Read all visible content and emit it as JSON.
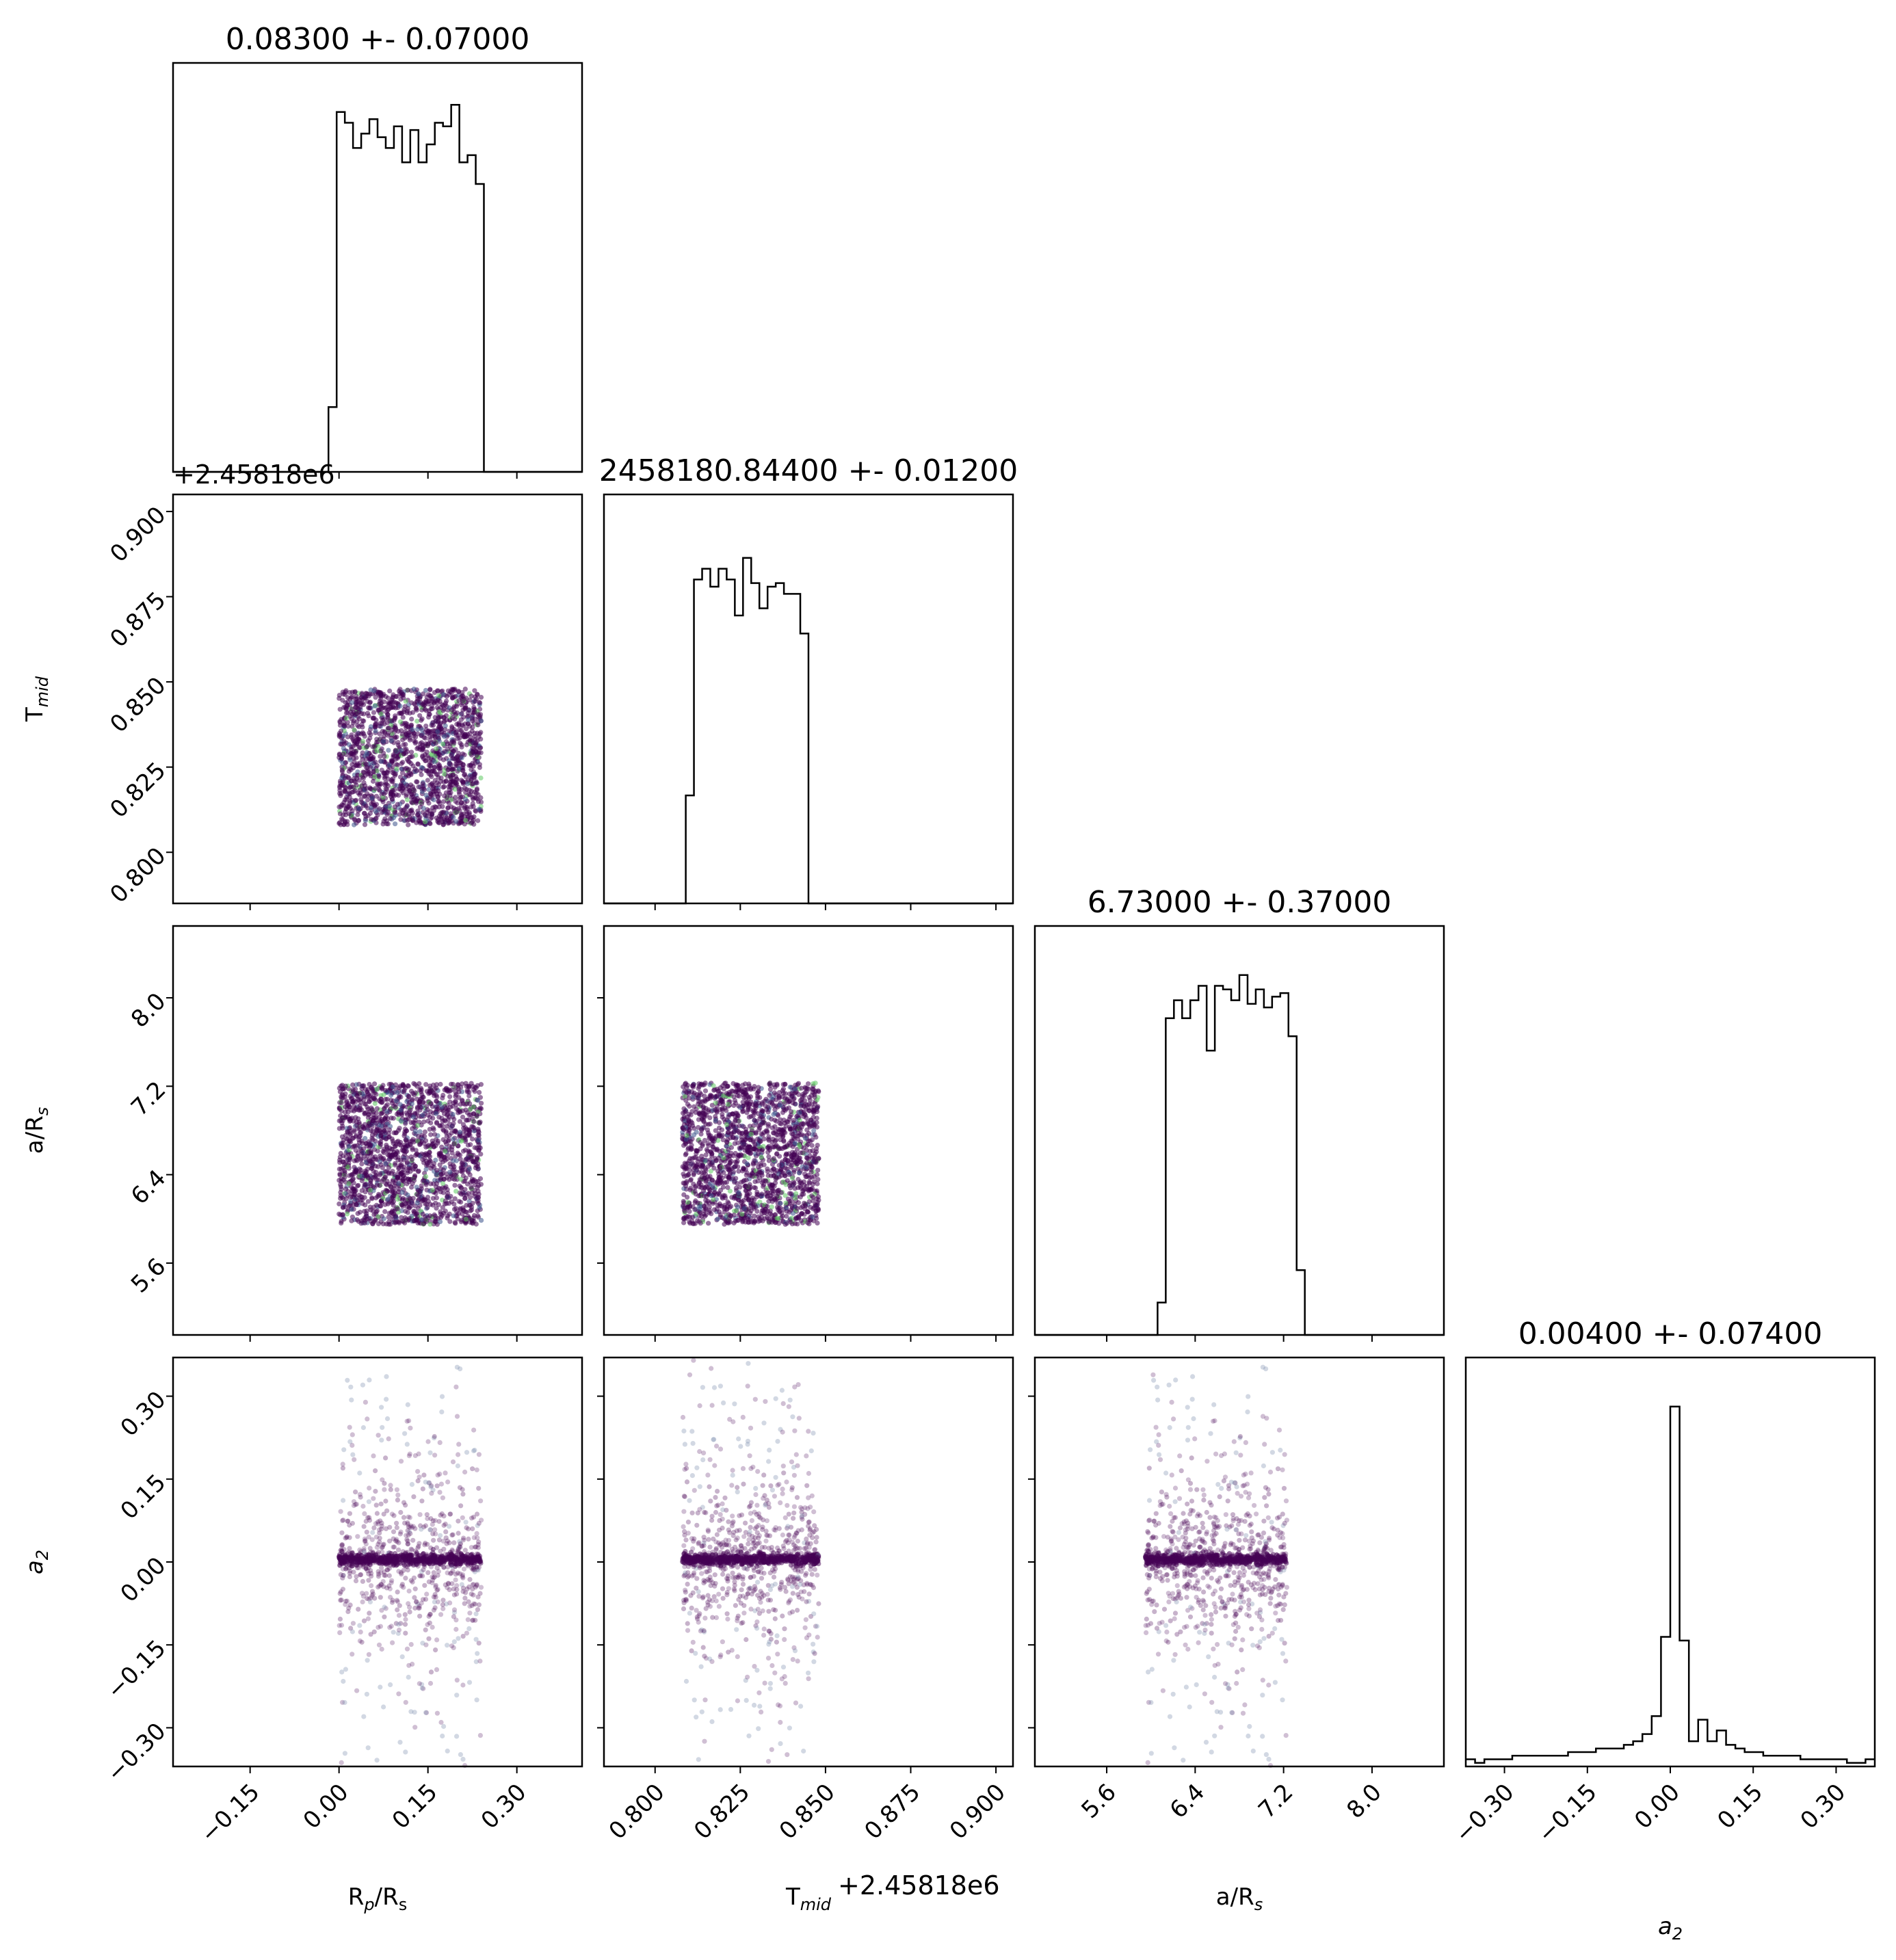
{
  "chart_data": {
    "type": "corner",
    "parameters": [
      {
        "key": "rp",
        "label": "R",
        "label_sub": "p",
        "label_mid": "/R",
        "label_sub2": "s",
        "range": [
          -0.28,
          0.41
        ],
        "ticks": [
          "−0.15",
          "0.00",
          "0.15",
          "0.30"
        ],
        "tick_values": [
          -0.15,
          0.0,
          0.15,
          0.3
        ],
        "samples_range": [
          0.0,
          0.24
        ],
        "title": "0.08300 +- 0.07000"
      },
      {
        "key": "tmid",
        "label": "T",
        "label_sub": "mid",
        "label_mid": "",
        "label_sub2": "",
        "range": [
          0.785,
          0.905
        ],
        "ticks": [
          "0.800",
          "0.825",
          "0.850",
          "0.875",
          "0.900"
        ],
        "tick_values": [
          0.8,
          0.825,
          0.85,
          0.875,
          0.9
        ],
        "samples_range": [
          0.808,
          0.848
        ],
        "title": "2458180.84400 +- 0.01200",
        "offset": "+2.45818e6"
      },
      {
        "key": "ars",
        "label": "a/R",
        "label_sub": "s",
        "label_mid": "",
        "label_sub2": "",
        "range": [
          4.95,
          8.65
        ],
        "ticks": [
          "5.6",
          "6.4",
          "7.2",
          "8.0"
        ],
        "tick_values": [
          5.6,
          6.4,
          7.2,
          8.0
        ],
        "samples_range": [
          5.95,
          7.23
        ],
        "title": "6.73000 +- 0.37000"
      },
      {
        "key": "a2",
        "label": "a",
        "label_sub": "2",
        "label_mid": "",
        "label_sub2": "",
        "italic": true,
        "range": [
          -0.37,
          0.37
        ],
        "ticks": [
          "−0.30",
          "−0.15",
          "0.00",
          "0.15",
          "0.30"
        ],
        "tick_values": [
          -0.3,
          -0.15,
          0.0,
          0.15,
          0.3
        ],
        "title": "0.00400 +- 0.07400"
      }
    ],
    "histograms": {
      "rp": {
        "bins": [
          -0.28,
          -0.2662,
          -0.2524,
          -0.2386,
          -0.2248,
          -0.211,
          -0.1972,
          -0.1834,
          -0.1696,
          -0.1558,
          -0.142,
          -0.1282,
          -0.1144,
          -0.1006,
          -0.0868,
          -0.073,
          -0.0592,
          -0.0454,
          -0.0316,
          -0.0178,
          -0.004,
          0.0098,
          0.0236,
          0.0374,
          0.0512,
          0.065,
          0.0788,
          0.0926,
          0.1064,
          0.1202,
          0.134,
          0.1478,
          0.1616,
          0.1754,
          0.1892,
          0.203,
          0.2168,
          0.2306,
          0.2444,
          0.2582,
          0.272,
          0.2858,
          0.2996,
          0.3134,
          0.3272,
          0.341,
          0.3548,
          0.3686,
          0.3824,
          0.3962,
          0.41
        ],
        "counts": [
          0,
          0,
          0,
          0,
          0,
          0,
          0,
          0,
          0,
          0,
          0,
          0,
          0,
          0,
          0,
          0,
          0,
          0,
          0,
          0.18,
          1.0,
          0.97,
          0.9,
          0.94,
          0.98,
          0.93,
          0.9,
          0.96,
          0.86,
          0.95,
          0.86,
          0.91,
          0.97,
          0.96,
          1.02,
          0.86,
          0.88,
          0.8,
          0,
          0,
          0,
          0,
          0,
          0,
          0,
          0,
          0,
          0,
          0,
          0
        ]
      },
      "tmid": {
        "counts": [
          0,
          0,
          0,
          0,
          0,
          0,
          0,
          0,
          0,
          0,
          0.3,
          0.9,
          0.93,
          0.88,
          0.93,
          0.9,
          0.8,
          0.96,
          0.89,
          0.82,
          0.88,
          0.89,
          0.86,
          0.86,
          0.75,
          0,
          0,
          0,
          0,
          0,
          0,
          0,
          0,
          0,
          0,
          0,
          0,
          0,
          0,
          0,
          0,
          0,
          0,
          0,
          0,
          0,
          0,
          0,
          0,
          0
        ]
      },
      "ars": {
        "counts": [
          0,
          0,
          0,
          0,
          0,
          0,
          0,
          0,
          0,
          0,
          0,
          0,
          0,
          0,
          0,
          0.09,
          0.88,
          0.93,
          0.88,
          0.93,
          0.97,
          0.79,
          0.97,
          0.96,
          0.93,
          1.0,
          0.92,
          0.96,
          0.91,
          0.94,
          0.95,
          0.83,
          0.18,
          0,
          0,
          0,
          0,
          0,
          0,
          0,
          0,
          0,
          0,
          0,
          0,
          0,
          0,
          0,
          0,
          0
        ]
      },
      "a2": {
        "counts": [
          0.02,
          0.01,
          0.02,
          0.02,
          0.02,
          0.03,
          0.03,
          0.03,
          0.03,
          0.03,
          0.03,
          0.04,
          0.04,
          0.04,
          0.05,
          0.05,
          0.05,
          0.06,
          0.07,
          0.09,
          0.14,
          0.36,
          1.0,
          0.35,
          0.07,
          0.13,
          0.07,
          0.1,
          0.06,
          0.05,
          0.04,
          0.04,
          0.03,
          0.03,
          0.03,
          0.03,
          0.02,
          0.02,
          0.02,
          0.02,
          0.02,
          0.01,
          0.01,
          0.02
        ]
      }
    },
    "x_axis_offset_label": "+2.45818e6",
    "y_axis_offset_label": "+2.45818e6",
    "colors": {
      "scatter_main": "#440154",
      "scatter_mid": "#3b528b",
      "scatter_light": "#5ec962",
      "scatter_tail": "#7f8fb0",
      "hist": "#000000"
    }
  }
}
